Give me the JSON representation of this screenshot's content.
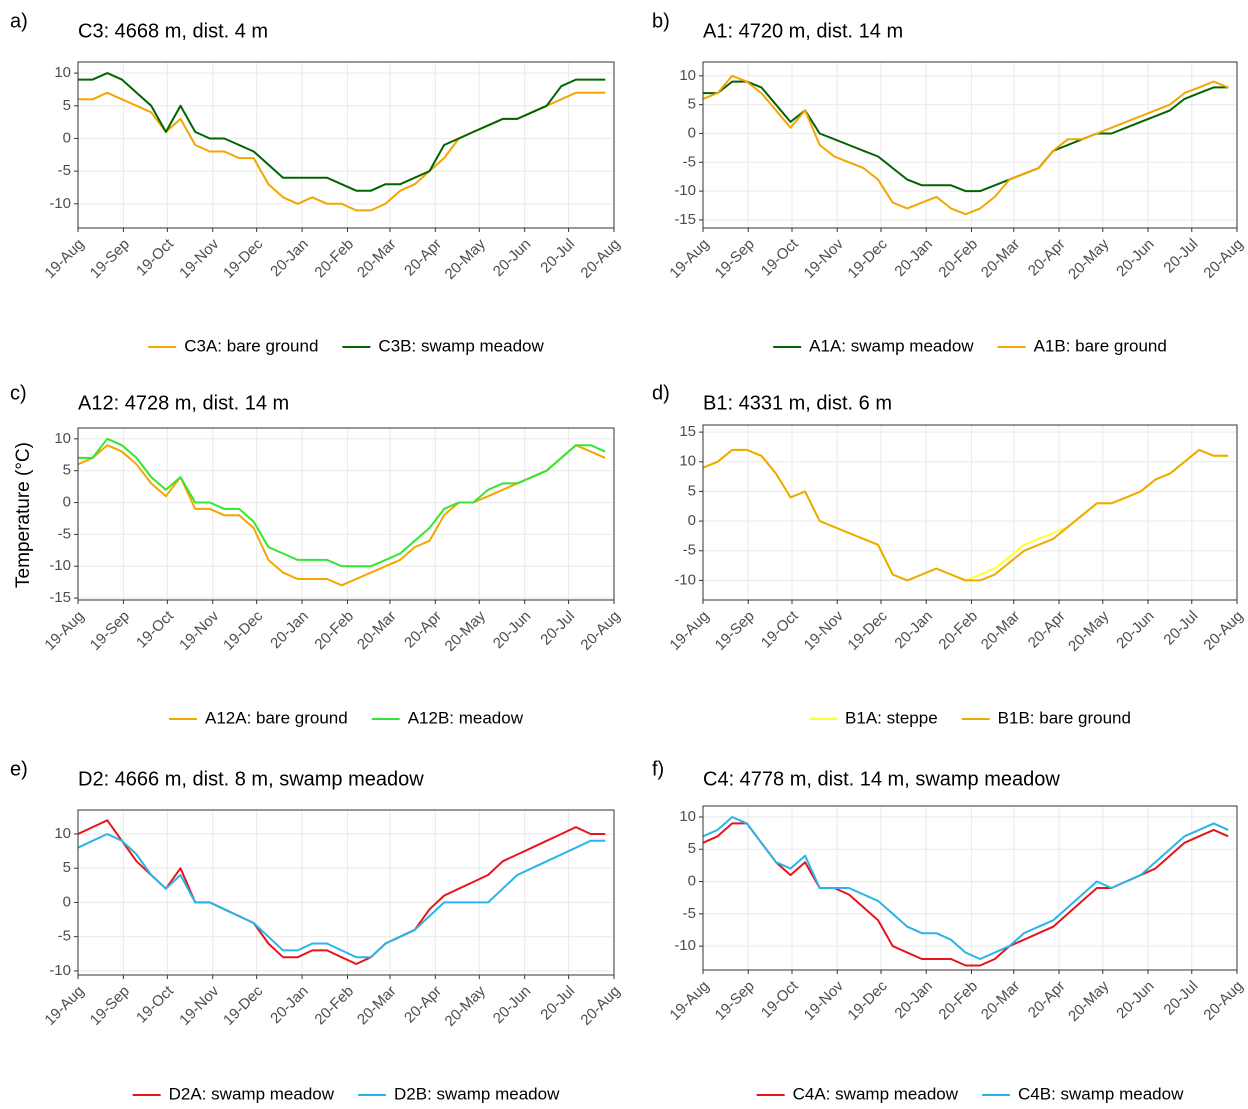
{
  "ylabel": "Temperature (°C)",
  "chart_data": [
    {
      "type": "line",
      "panel": "a)",
      "title": "C3: 4668 m, dist. 4 m",
      "x": [
        0,
        10,
        20,
        30,
        40,
        50,
        60,
        70,
        80,
        90,
        100,
        110,
        120,
        130,
        140,
        150,
        160,
        170,
        180,
        190,
        200,
        210,
        220,
        230,
        240,
        250,
        260,
        270,
        280,
        290,
        300,
        310,
        320,
        330,
        340,
        350,
        360
      ],
      "xlim": [
        0,
        366
      ],
      "xticks": [
        {
          "value": 0,
          "label": "19-Aug"
        },
        {
          "value": 31,
          "label": "19-Sep"
        },
        {
          "value": 61,
          "label": "19-Oct"
        },
        {
          "value": 92,
          "label": "19-Nov"
        },
        {
          "value": 122,
          "label": "19-Dec"
        },
        {
          "value": 153,
          "label": "20-Jan"
        },
        {
          "value": 184,
          "label": "20-Feb"
        },
        {
          "value": 213,
          "label": "20-Mar"
        },
        {
          "value": 244,
          "label": "20-Apr"
        },
        {
          "value": 274,
          "label": "20-May"
        },
        {
          "value": 305,
          "label": "20-Jun"
        },
        {
          "value": 335,
          "label": "20-Jul"
        },
        {
          "value": 366,
          "label": "20-Aug"
        }
      ],
      "ylim": [
        -13.7,
        11.7
      ],
      "yticks": [
        -10,
        -5,
        0,
        5,
        10
      ],
      "grid": true,
      "series": [
        {
          "name": "C3A: bare ground",
          "color": "#f5a500",
          "values": [
            6,
            6,
            7,
            6,
            5,
            4,
            1,
            3,
            -1,
            -2,
            -2,
            -3,
            -3,
            -7,
            -9,
            -10,
            -9,
            -10,
            -10,
            -11,
            -11,
            -10,
            -8,
            -7,
            -5,
            -3,
            0,
            1,
            2,
            3,
            3,
            4,
            5,
            6,
            7,
            7,
            7
          ]
        },
        {
          "name": "C3B: swamp meadow",
          "color": "#006400",
          "values": [
            9,
            9,
            10,
            9,
            7,
            5,
            1,
            5,
            1,
            0,
            0,
            -1,
            -2,
            -4,
            -6,
            -6,
            -6,
            -6,
            -7,
            -8,
            -8,
            -7,
            -7,
            -6,
            -5,
            -1,
            0,
            1,
            2,
            3,
            3,
            4,
            5,
            8,
            9,
            9,
            9
          ]
        }
      ]
    },
    {
      "type": "line",
      "panel": "b)",
      "title": "A1: 4720 m, dist. 14 m",
      "x": [
        0,
        10,
        20,
        30,
        40,
        50,
        60,
        70,
        80,
        90,
        100,
        110,
        120,
        130,
        140,
        150,
        160,
        170,
        180,
        190,
        200,
        210,
        220,
        230,
        240,
        250,
        260,
        270,
        280,
        290,
        300,
        310,
        320,
        330,
        340,
        350,
        360
      ],
      "xlim": [
        0,
        366
      ],
      "xticks": [
        {
          "value": 0,
          "label": "19-Aug"
        },
        {
          "value": 31,
          "label": "19-Sep"
        },
        {
          "value": 61,
          "label": "19-Oct"
        },
        {
          "value": 92,
          "label": "19-Nov"
        },
        {
          "value": 122,
          "label": "19-Dec"
        },
        {
          "value": 153,
          "label": "20-Jan"
        },
        {
          "value": 184,
          "label": "20-Feb"
        },
        {
          "value": 213,
          "label": "20-Mar"
        },
        {
          "value": 244,
          "label": "20-Apr"
        },
        {
          "value": 274,
          "label": "20-May"
        },
        {
          "value": 305,
          "label": "20-Jun"
        },
        {
          "value": 335,
          "label": "20-Jul"
        },
        {
          "value": 366,
          "label": "20-Aug"
        }
      ],
      "ylim": [
        -16.4,
        12.4
      ],
      "yticks": [
        -15,
        -10,
        -5,
        0,
        5,
        10
      ],
      "grid": true,
      "series": [
        {
          "name": "A1A: swamp meadow",
          "color": "#006400",
          "values": [
            7,
            7,
            9,
            9,
            8,
            5,
            2,
            4,
            0,
            -1,
            -2,
            -3,
            -4,
            -6,
            -8,
            -9,
            -9,
            -9,
            -10,
            -10,
            -9,
            -8,
            -7,
            -6,
            -3,
            -2,
            -1,
            0,
            0,
            1,
            2,
            3,
            4,
            6,
            7,
            8,
            8
          ]
        },
        {
          "name": "A1B: bare ground",
          "color": "#f5a500",
          "values": [
            6,
            7,
            10,
            9,
            7,
            4,
            1,
            4,
            -2,
            -4,
            -5,
            -6,
            -8,
            -12,
            -13,
            -12,
            -11,
            -13,
            -14,
            -13,
            -11,
            -8,
            -7,
            -6,
            -3,
            -1,
            -1,
            0,
            1,
            2,
            3,
            4,
            5,
            7,
            8,
            9,
            8
          ]
        }
      ]
    },
    {
      "type": "line",
      "panel": "c)",
      "title": "A12: 4728 m, dist. 14 m",
      "x": [
        0,
        10,
        20,
        30,
        40,
        50,
        60,
        70,
        80,
        90,
        100,
        110,
        120,
        130,
        140,
        150,
        160,
        170,
        180,
        190,
        200,
        210,
        220,
        230,
        240,
        250,
        260,
        270,
        280,
        290,
        300,
        310,
        320,
        330,
        340,
        350,
        360
      ],
      "xlim": [
        0,
        366
      ],
      "xticks": [
        {
          "value": 0,
          "label": "19-Aug"
        },
        {
          "value": 31,
          "label": "19-Sep"
        },
        {
          "value": 61,
          "label": "19-Oct"
        },
        {
          "value": 92,
          "label": "19-Nov"
        },
        {
          "value": 122,
          "label": "19-Dec"
        },
        {
          "value": 153,
          "label": "20-Jan"
        },
        {
          "value": 184,
          "label": "20-Feb"
        },
        {
          "value": 213,
          "label": "20-Mar"
        },
        {
          "value": 244,
          "label": "20-Apr"
        },
        {
          "value": 274,
          "label": "20-May"
        },
        {
          "value": 305,
          "label": "20-Jun"
        },
        {
          "value": 335,
          "label": "20-Jul"
        },
        {
          "value": 366,
          "label": "20-Aug"
        }
      ],
      "ylim": [
        -15.3,
        11.7
      ],
      "yticks": [
        -15,
        -10,
        -5,
        0,
        5,
        10
      ],
      "grid": true,
      "series": [
        {
          "name": "A12A: bare ground",
          "color": "#f5a500",
          "values": [
            6,
            7,
            9,
            8,
            6,
            3,
            1,
            4,
            -1,
            -1,
            -2,
            -2,
            -4,
            -9,
            -11,
            -12,
            -12,
            -12,
            -13,
            -12,
            -11,
            -10,
            -9,
            -7,
            -6,
            -2,
            0,
            0,
            1,
            2,
            3,
            4,
            5,
            7,
            9,
            8,
            7
          ]
        },
        {
          "name": "A12B: meadow",
          "color": "#33e633",
          "values": [
            7,
            7,
            10,
            9,
            7,
            4,
            2,
            4,
            0,
            0,
            -1,
            -1,
            -3,
            -7,
            -8,
            -9,
            -9,
            -9,
            -10,
            -10,
            -10,
            -9,
            -8,
            -6,
            -4,
            -1,
            0,
            0,
            2,
            3,
            3,
            4,
            5,
            7,
            9,
            9,
            8
          ]
        }
      ]
    },
    {
      "type": "line",
      "panel": "d)",
      "title": "B1: 4331 m, dist. 6 m",
      "x": [
        0,
        10,
        20,
        30,
        40,
        50,
        60,
        70,
        80,
        90,
        100,
        110,
        120,
        130,
        140,
        150,
        160,
        170,
        180,
        190,
        200,
        210,
        220,
        230,
        240,
        250,
        260,
        270,
        280,
        290,
        300,
        310,
        320,
        330,
        340,
        350,
        360
      ],
      "xlim": [
        0,
        366
      ],
      "xticks": [
        {
          "value": 0,
          "label": "19-Aug"
        },
        {
          "value": 31,
          "label": "19-Sep"
        },
        {
          "value": 61,
          "label": "19-Oct"
        },
        {
          "value": 92,
          "label": "19-Nov"
        },
        {
          "value": 122,
          "label": "19-Dec"
        },
        {
          "value": 153,
          "label": "20-Jan"
        },
        {
          "value": 184,
          "label": "20-Feb"
        },
        {
          "value": 213,
          "label": "20-Mar"
        },
        {
          "value": 244,
          "label": "20-Apr"
        },
        {
          "value": 274,
          "label": "20-May"
        },
        {
          "value": 305,
          "label": "20-Jun"
        },
        {
          "value": 335,
          "label": "20-Jul"
        },
        {
          "value": 366,
          "label": "20-Aug"
        }
      ],
      "ylim": [
        -13.3,
        16.2
      ],
      "yticks": [
        -10,
        -5,
        0,
        5,
        10,
        15
      ],
      "grid": true,
      "series": [
        {
          "name": "B1A: steppe",
          "color": "#ffff33",
          "values": [
            9,
            10,
            12,
            12,
            11,
            8,
            4,
            5,
            0,
            -1,
            -2,
            -3,
            -4,
            -9,
            -10,
            -9,
            -8,
            -9,
            -10,
            -9,
            -8,
            -6,
            -4,
            -3,
            -2,
            -1,
            1,
            3,
            3,
            4,
            5,
            7,
            8,
            10,
            12,
            11,
            11
          ]
        },
        {
          "name": "B1B: bare ground",
          "color": "#f0a800",
          "values": [
            9,
            10,
            12,
            12,
            11,
            8,
            4,
            5,
            0,
            -1,
            -2,
            -3,
            -4,
            -9,
            -10,
            -9,
            -8,
            -9,
            -10,
            -10,
            -9,
            -7,
            -5,
            -4,
            -3,
            -1,
            1,
            3,
            3,
            4,
            5,
            7,
            8,
            10,
            12,
            11,
            11
          ]
        }
      ]
    },
    {
      "type": "line",
      "panel": "e)",
      "title": "D2: 4666 m, dist. 8 m, swamp meadow",
      "x": [
        0,
        10,
        20,
        30,
        40,
        50,
        60,
        70,
        80,
        90,
        100,
        110,
        120,
        130,
        140,
        150,
        160,
        170,
        180,
        190,
        200,
        210,
        220,
        230,
        240,
        250,
        260,
        270,
        280,
        290,
        300,
        310,
        320,
        330,
        340,
        350,
        360
      ],
      "xlim": [
        0,
        366
      ],
      "xticks": [
        {
          "value": 0,
          "label": "19-Aug"
        },
        {
          "value": 31,
          "label": "19-Sep"
        },
        {
          "value": 61,
          "label": "19-Oct"
        },
        {
          "value": 92,
          "label": "19-Nov"
        },
        {
          "value": 122,
          "label": "19-Dec"
        },
        {
          "value": 153,
          "label": "20-Jan"
        },
        {
          "value": 184,
          "label": "20-Feb"
        },
        {
          "value": 213,
          "label": "20-Mar"
        },
        {
          "value": 244,
          "label": "20-Apr"
        },
        {
          "value": 274,
          "label": "20-May"
        },
        {
          "value": 305,
          "label": "20-Jun"
        },
        {
          "value": 335,
          "label": "20-Jul"
        },
        {
          "value": 366,
          "label": "20-Aug"
        }
      ],
      "ylim": [
        -10.6,
        13.5
      ],
      "yticks": [
        -10,
        -5,
        0,
        5,
        10
      ],
      "grid": true,
      "series": [
        {
          "name": "D2A: swamp meadow",
          "color": "#e8141c",
          "values": [
            10,
            11,
            12,
            9,
            6,
            4,
            2,
            5,
            0,
            0,
            -1,
            -2,
            -3,
            -6,
            -8,
            -8,
            -7,
            -7,
            -8,
            -9,
            -8,
            -6,
            -5,
            -4,
            -1,
            1,
            2,
            3,
            4,
            6,
            7,
            8,
            9,
            10,
            11,
            10,
            10
          ]
        },
        {
          "name": "D2B: swamp meadow",
          "color": "#29b5e8",
          "values": [
            8,
            9,
            10,
            9,
            7,
            4,
            2,
            4,
            0,
            0,
            -1,
            -2,
            -3,
            -5,
            -7,
            -7,
            -6,
            -6,
            -7,
            -8,
            -8,
            -6,
            -5,
            -4,
            -2,
            0,
            0,
            0,
            0,
            2,
            4,
            5,
            6,
            7,
            8,
            9,
            9
          ]
        }
      ]
    },
    {
      "type": "line",
      "panel": "f)",
      "title": "C4: 4778 m, dist. 14 m, swamp meadow",
      "x": [
        0,
        10,
        20,
        30,
        40,
        50,
        60,
        70,
        80,
        90,
        100,
        110,
        120,
        130,
        140,
        150,
        160,
        170,
        180,
        190,
        200,
        210,
        220,
        230,
        240,
        250,
        260,
        270,
        280,
        290,
        300,
        310,
        320,
        330,
        340,
        350,
        360
      ],
      "xlim": [
        0,
        366
      ],
      "xticks": [
        {
          "value": 0,
          "label": "19-Aug"
        },
        {
          "value": 31,
          "label": "19-Sep"
        },
        {
          "value": 61,
          "label": "19-Oct"
        },
        {
          "value": 92,
          "label": "19-Nov"
        },
        {
          "value": 122,
          "label": "19-Dec"
        },
        {
          "value": 153,
          "label": "20-Jan"
        },
        {
          "value": 184,
          "label": "20-Feb"
        },
        {
          "value": 213,
          "label": "20-Mar"
        },
        {
          "value": 244,
          "label": "20-Apr"
        },
        {
          "value": 274,
          "label": "20-May"
        },
        {
          "value": 305,
          "label": "20-Jun"
        },
        {
          "value": 335,
          "label": "20-Jul"
        },
        {
          "value": 366,
          "label": "20-Aug"
        }
      ],
      "ylim": [
        -13.7,
        11.7
      ],
      "yticks": [
        -10,
        -5,
        0,
        5,
        10
      ],
      "grid": true,
      "series": [
        {
          "name": "C4A: swamp meadow",
          "color": "#e8141c",
          "values": [
            6,
            7,
            9,
            9,
            6,
            3,
            1,
            3,
            -1,
            -1,
            -2,
            -4,
            -6,
            -10,
            -11,
            -12,
            -12,
            -12,
            -13,
            -13,
            -12,
            -10,
            -9,
            -8,
            -7,
            -5,
            -3,
            -1,
            -1,
            0,
            1,
            2,
            4,
            6,
            7,
            8,
            7
          ]
        },
        {
          "name": "C4B: swamp meadow",
          "color": "#29b5e8",
          "values": [
            7,
            8,
            10,
            9,
            6,
            3,
            2,
            4,
            -1,
            -1,
            -1,
            -2,
            -3,
            -5,
            -7,
            -8,
            -8,
            -9,
            -11,
            -12,
            -11,
            -10,
            -8,
            -7,
            -6,
            -4,
            -2,
            0,
            -1,
            0,
            1,
            3,
            5,
            7,
            8,
            9,
            8
          ]
        }
      ]
    }
  ]
}
